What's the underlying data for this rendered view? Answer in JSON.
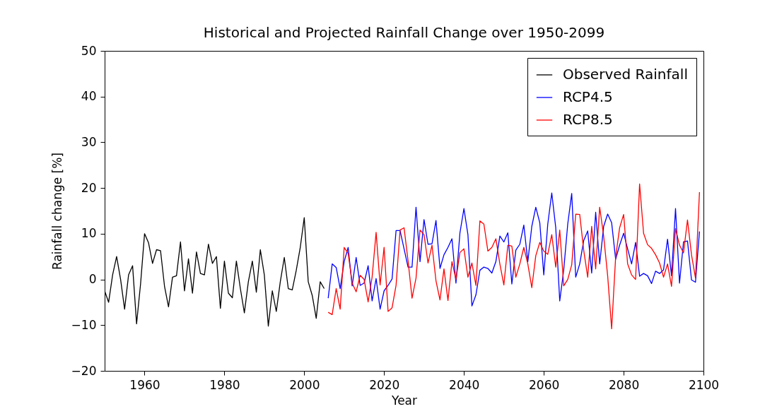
{
  "chart_data": {
    "type": "line",
    "title": "Historical and Projected Rainfall Change over 1950-2099",
    "xlabel": "Year",
    "ylabel": "Rainfall change [%]",
    "xlim": [
      1950,
      2100
    ],
    "xticks": [
      1960,
      1980,
      2000,
      2020,
      2040,
      2060,
      2080,
      2100
    ],
    "ylim": [
      -20,
      50
    ],
    "yticks": [
      -20,
      -10,
      0,
      10,
      20,
      30,
      40,
      50
    ],
    "grid": false,
    "legend": "top right",
    "line_style": "solid",
    "series": [
      {
        "name": "Observed Rainfall",
        "color": "#000000",
        "x": [
          1950,
          1951,
          1952,
          1953,
          1954,
          1955,
          1956,
          1957,
          1958,
          1959,
          1960,
          1961,
          1962,
          1963,
          1964,
          1965,
          1966,
          1967,
          1968,
          1969,
          1970,
          1971,
          1972,
          1973,
          1974,
          1975,
          1976,
          1977,
          1978,
          1979,
          1980,
          1981,
          1982,
          1983,
          1984,
          1985,
          1986,
          1987,
          1988,
          1989,
          1990,
          1991,
          1992,
          1993,
          1994,
          1995,
          1996,
          1997,
          1998,
          1999,
          2000,
          2001,
          2002,
          2003,
          2004,
          2005
        ],
        "values": [
          -2.5,
          -5,
          1,
          5,
          0,
          -6.5,
          1,
          3,
          -9.7,
          -1,
          10,
          8,
          3.5,
          6.5,
          6.3,
          -1.5,
          -6,
          0.5,
          0.8,
          8.2,
          -2.5,
          4.5,
          -3,
          6,
          1.3,
          1,
          7.7,
          3.5,
          5,
          -6.3,
          4,
          -3,
          -4,
          4,
          -2,
          -7.3,
          -0.5,
          4,
          -2.8,
          6.5,
          1,
          -10.2,
          -2.5,
          -7,
          -0.5,
          4.8,
          -2,
          -2.3,
          2,
          7,
          13.5,
          -0.5,
          -3.5,
          -8.5,
          -0.5,
          -2
        ]
      },
      {
        "name": "RCP4.5",
        "color": "#0000ff",
        "x": [
          2006,
          2007,
          2008,
          2009,
          2010,
          2011,
          2012,
          2013,
          2014,
          2015,
          2016,
          2017,
          2018,
          2019,
          2020,
          2021,
          2022,
          2023,
          2024,
          2025,
          2026,
          2027,
          2028,
          2029,
          2030,
          2031,
          2032,
          2033,
          2034,
          2035,
          2036,
          2037,
          2038,
          2039,
          2040,
          2041,
          2042,
          2043,
          2044,
          2045,
          2046,
          2047,
          2048,
          2049,
          2050,
          2051,
          2052,
          2053,
          2054,
          2055,
          2056,
          2057,
          2058,
          2059,
          2060,
          2061,
          2062,
          2063,
          2064,
          2065,
          2066,
          2067,
          2068,
          2069,
          2070,
          2071,
          2072,
          2073,
          2074,
          2075,
          2076,
          2077,
          2078,
          2079,
          2080,
          2081,
          2082,
          2083,
          2084,
          2085,
          2086,
          2087,
          2088,
          2089,
          2090,
          2091,
          2092,
          2093,
          2094,
          2095,
          2096,
          2097,
          2098,
          2099
        ],
        "values": [
          -4.1,
          3.4,
          2.6,
          -2,
          3.9,
          7,
          -1.4,
          4.8,
          -1.3,
          -0.8,
          3,
          -4.7,
          0.2,
          -6.5,
          -2.5,
          -1.3,
          0.1,
          10.7,
          10.7,
          6.7,
          2.7,
          2.7,
          15.8,
          3.9,
          13.1,
          7.7,
          7.8,
          12.9,
          2.4,
          5.4,
          7,
          8.9,
          -0.8,
          10.2,
          15.5,
          9.8,
          -5.8,
          -3.4,
          2,
          2.7,
          2.4,
          1.4,
          3.9,
          9.5,
          8.2,
          10.2,
          -1,
          6.4,
          7.7,
          11.9,
          3.9,
          11.6,
          15.8,
          12.4,
          1,
          12.1,
          18.9,
          11.3,
          -4.7,
          2.1,
          12.1,
          18.8,
          0.5,
          3.4,
          8.5,
          10.6,
          1.4,
          14.7,
          3.4,
          11.6,
          14.3,
          12.4,
          4.4,
          7.5,
          10.1,
          6.7,
          3.4,
          8.1,
          0.7,
          1.3,
          0.8,
          -0.9,
          1.8,
          1.3,
          2.1,
          8.8,
          0.8,
          15.5,
          -0.8,
          8.2,
          8.4,
          -0.1,
          -0.6,
          10.5
        ]
      },
      {
        "name": "RCP8.5",
        "color": "#ff0000",
        "x": [
          2006,
          2007,
          2008,
          2009,
          2010,
          2011,
          2012,
          2013,
          2014,
          2015,
          2016,
          2017,
          2018,
          2019,
          2020,
          2021,
          2022,
          2023,
          2024,
          2025,
          2026,
          2027,
          2028,
          2029,
          2030,
          2031,
          2032,
          2033,
          2034,
          2035,
          2036,
          2037,
          2038,
          2039,
          2040,
          2041,
          2042,
          2043,
          2044,
          2045,
          2046,
          2047,
          2048,
          2049,
          2050,
          2051,
          2052,
          2053,
          2054,
          2055,
          2056,
          2057,
          2058,
          2059,
          2060,
          2061,
          2062,
          2063,
          2064,
          2065,
          2066,
          2067,
          2068,
          2069,
          2070,
          2071,
          2072,
          2073,
          2074,
          2075,
          2076,
          2077,
          2078,
          2079,
          2080,
          2081,
          2082,
          2083,
          2084,
          2085,
          2086,
          2087,
          2088,
          2089,
          2090,
          2091,
          2092,
          2093,
          2094,
          2095,
          2096,
          2097,
          2098,
          2099
        ],
        "values": [
          -7.2,
          -7.7,
          -2,
          -6.5,
          7,
          5.7,
          -0.8,
          -2.7,
          0.9,
          0,
          -4.9,
          0.5,
          10.3,
          -1.2,
          7,
          -7,
          -6.2,
          -1.3,
          10.8,
          11.3,
          4.1,
          -4.1,
          0.3,
          10.8,
          9.8,
          3.6,
          7.5,
          -0.3,
          -4.5,
          2.3,
          -4.6,
          3.9,
          0,
          5.9,
          6.7,
          0.5,
          3.6,
          -1.3,
          12.8,
          12.1,
          6.2,
          7,
          8.9,
          3.4,
          -1.2,
          7.5,
          7.3,
          0.5,
          3.4,
          7,
          3.4,
          -1.8,
          5.2,
          8.1,
          6.2,
          5.5,
          9.8,
          2.7,
          10.8,
          -1.4,
          0,
          3.2,
          14.3,
          14.2,
          6.4,
          0.5,
          11.6,
          2.3,
          15.8,
          9.5,
          0.8,
          -10.8,
          4.9,
          11.3,
          14.2,
          3.4,
          1,
          0,
          20.9,
          10.1,
          7.6,
          6.8,
          5.4,
          3.6,
          0.5,
          3.4,
          -1.5,
          11.1,
          7.5,
          5.8,
          13,
          5.4,
          0.3,
          19.1
        ]
      }
    ]
  }
}
